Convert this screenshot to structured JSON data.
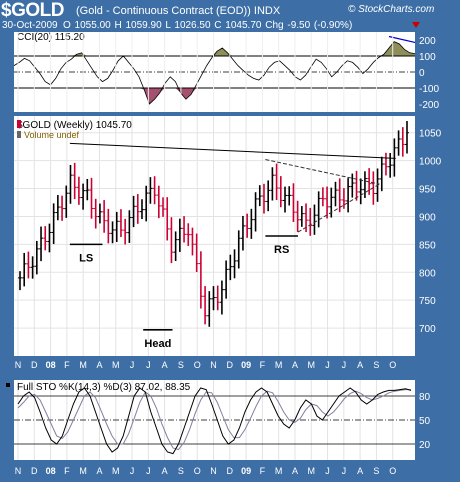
{
  "header": {
    "symbol": "$GOLD",
    "subtitle": "(Gold - Continuous Contract (EOD))  INDX",
    "brand": "© StockCharts.com",
    "date": "30-Oct-2009",
    "ohlc_text": "O 1055.00  H 1059.90  L 1026.50  C 1045.70",
    "change_text": "Chg -9.50 (-0.90%)"
  },
  "colors": {
    "frame": "#3d6fa6",
    "panel_bg": "#ffffff",
    "up_bar": "#000000",
    "down_bar": "#cc0033",
    "cci_fill_pos": "#8e8e5a",
    "cci_fill_neg": "#a4506e",
    "k_line": "#000000",
    "d_line": "#8080a0",
    "cci_trend": "#0000cc"
  },
  "chart_data": [
    {
      "type": "line",
      "panel": "cci",
      "label": "CCI(20) 115.20",
      "ylim": [
        -250,
        250
      ],
      "ticks": [
        200,
        100,
        0,
        -100,
        -200
      ],
      "guides": [
        100,
        -100
      ],
      "values": [
        40,
        60,
        85,
        70,
        30,
        -10,
        -60,
        -80,
        -40,
        20,
        60,
        80,
        110,
        120,
        70,
        20,
        -30,
        -60,
        -40,
        10,
        70,
        100,
        60,
        20,
        -30,
        -110,
        -200,
        -170,
        -130,
        -70,
        -30,
        -60,
        -130,
        -170,
        -140,
        -80,
        -20,
        40,
        90,
        130,
        150,
        120,
        80,
        40,
        10,
        -20,
        -40,
        -50,
        -20,
        30,
        60,
        70,
        40,
        10,
        -30,
        -50,
        -20,
        30,
        80,
        60,
        20,
        -30,
        0,
        40,
        70,
        60,
        30,
        -10,
        20,
        60,
        90,
        110,
        150,
        190,
        175,
        140,
        120,
        115
      ]
    },
    {
      "type": "bar",
      "panel": "price",
      "label": "$GOLD (Weekly) 1045.70",
      "volume_label": "Volume undef",
      "ylim": [
        650,
        1080
      ],
      "ticks": [
        1050,
        1000,
        950,
        900,
        850,
        800,
        750,
        700
      ],
      "x_labels": [
        "N",
        "D",
        "08",
        "F",
        "M",
        "A",
        "M",
        "J",
        "J",
        "A",
        "S",
        "O",
        "N",
        "D",
        "09",
        "F",
        "M",
        "A",
        "M",
        "J",
        "J",
        "A",
        "S",
        "O"
      ],
      "months": [
        "N",
        "D",
        "J",
        "F",
        "M",
        "A",
        "M",
        "J",
        "J",
        "A",
        "S",
        "O",
        "N",
        "D",
        "J",
        "F",
        "M",
        "A",
        "M",
        "J",
        "J",
        "A",
        "S",
        "O"
      ],
      "monthly_close": [
        790,
        835,
        895,
        960,
        935,
        885,
        875,
        915,
        950,
        850,
        880,
        730,
        770,
        855,
        920,
        960,
        925,
        885,
        930,
        935,
        955,
        955,
        1005,
        1050
      ],
      "annotations": [
        {
          "text": "LS",
          "price": 850
        },
        {
          "text": "Head",
          "price": 697
        },
        {
          "text": "RS",
          "price": 865
        }
      ],
      "neckline": [
        1031,
        1004
      ]
    },
    {
      "type": "line",
      "panel": "stochastic",
      "label": "Full STO %K(14,3) %D(3) 87.02, 88.35",
      "ylim": [
        0,
        100
      ],
      "ticks": [
        80,
        50,
        20
      ],
      "k": [
        70,
        80,
        85,
        78,
        60,
        40,
        25,
        20,
        30,
        50,
        70,
        85,
        90,
        80,
        60,
        40,
        20,
        10,
        15,
        30,
        55,
        80,
        90,
        85,
        60,
        40,
        20,
        10,
        8,
        20,
        40,
        60,
        80,
        90,
        88,
        70,
        50,
        30,
        20,
        25,
        40,
        60,
        75,
        85,
        90,
        85,
        70,
        55,
        45,
        40,
        50,
        65,
        75,
        70,
        55,
        50,
        60,
        70,
        80,
        85,
        90,
        85,
        75,
        70,
        75,
        82,
        85,
        87,
        87,
        88,
        89,
        87
      ],
      "d": [
        65,
        72,
        80,
        82,
        75,
        60,
        45,
        30,
        27,
        35,
        50,
        65,
        80,
        85,
        78,
        62,
        45,
        30,
        20,
        20,
        33,
        52,
        72,
        85,
        80,
        65,
        45,
        28,
        15,
        13,
        22,
        38,
        58,
        75,
        85,
        84,
        72,
        55,
        38,
        28,
        28,
        38,
        52,
        67,
        80,
        86,
        84,
        73,
        60,
        50,
        47,
        52,
        63,
        70,
        68,
        60,
        55,
        60,
        68,
        77,
        83,
        86,
        83,
        78,
        75,
        77,
        80,
        84,
        86,
        87,
        88,
        88
      ]
    }
  ]
}
